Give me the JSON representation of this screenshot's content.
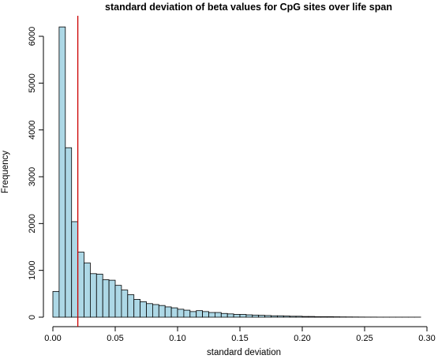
{
  "chart_data": {
    "type": "bar",
    "title": "standard deviation of beta values for CpG sites over life span",
    "xlabel": "standard deviation",
    "ylabel": "Frequency",
    "xlim": [
      0,
      0.3
    ],
    "ylim": [
      0,
      6200
    ],
    "bin_width": 0.005,
    "bin_start": 0,
    "values": [
      550,
      6200,
      3620,
      2040,
      1390,
      1160,
      930,
      920,
      800,
      790,
      680,
      580,
      480,
      380,
      330,
      290,
      270,
      250,
      220,
      200,
      170,
      150,
      120,
      140,
      120,
      100,
      100,
      80,
      70,
      60,
      60,
      50,
      45,
      40,
      35,
      30,
      30,
      25,
      20,
      20,
      15,
      15,
      10,
      10,
      10,
      8,
      6,
      5,
      4,
      3,
      2,
      2,
      1,
      1,
      1,
      1,
      1,
      1,
      1,
      0
    ],
    "x_ticks": [
      "0.00",
      "0.05",
      "0.10",
      "0.15",
      "0.20",
      "0.25",
      "0.30"
    ],
    "x_tick_values": [
      0,
      0.05,
      0.1,
      0.15,
      0.2,
      0.25,
      0.3
    ],
    "y_ticks": [
      "0",
      "1000",
      "2000",
      "3000",
      "4000",
      "5000",
      "6000"
    ],
    "y_tick_values": [
      0,
      1000,
      2000,
      3000,
      4000,
      5000,
      6000
    ],
    "reference_line_x": 0.02,
    "colors": {
      "bar_fill": "#add8e6",
      "bar_stroke": "#000000",
      "reference_line": "#cc0000"
    },
    "grid": false,
    "legend": "none"
  }
}
